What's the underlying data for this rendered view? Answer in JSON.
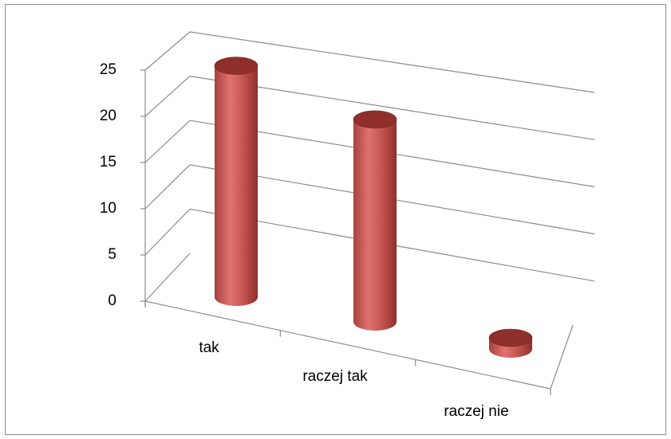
{
  "chart_data": {
    "type": "bar",
    "style": "3d-cylinder",
    "categories": [
      "tak",
      "raczej tak",
      "raczej nie"
    ],
    "series": [
      {
        "values": [
          24,
          21,
          1
        ]
      }
    ],
    "y_ticks": [
      "0",
      "5",
      "10",
      "15",
      "20",
      "25"
    ],
    "ylim": [
      0,
      25
    ],
    "grid": true,
    "legend": "none",
    "colors": {
      "bar": "#c0504d",
      "bar_light": "#e07370",
      "bar_dark": "#8f2f2c",
      "grid": "#8c8c8c"
    }
  }
}
